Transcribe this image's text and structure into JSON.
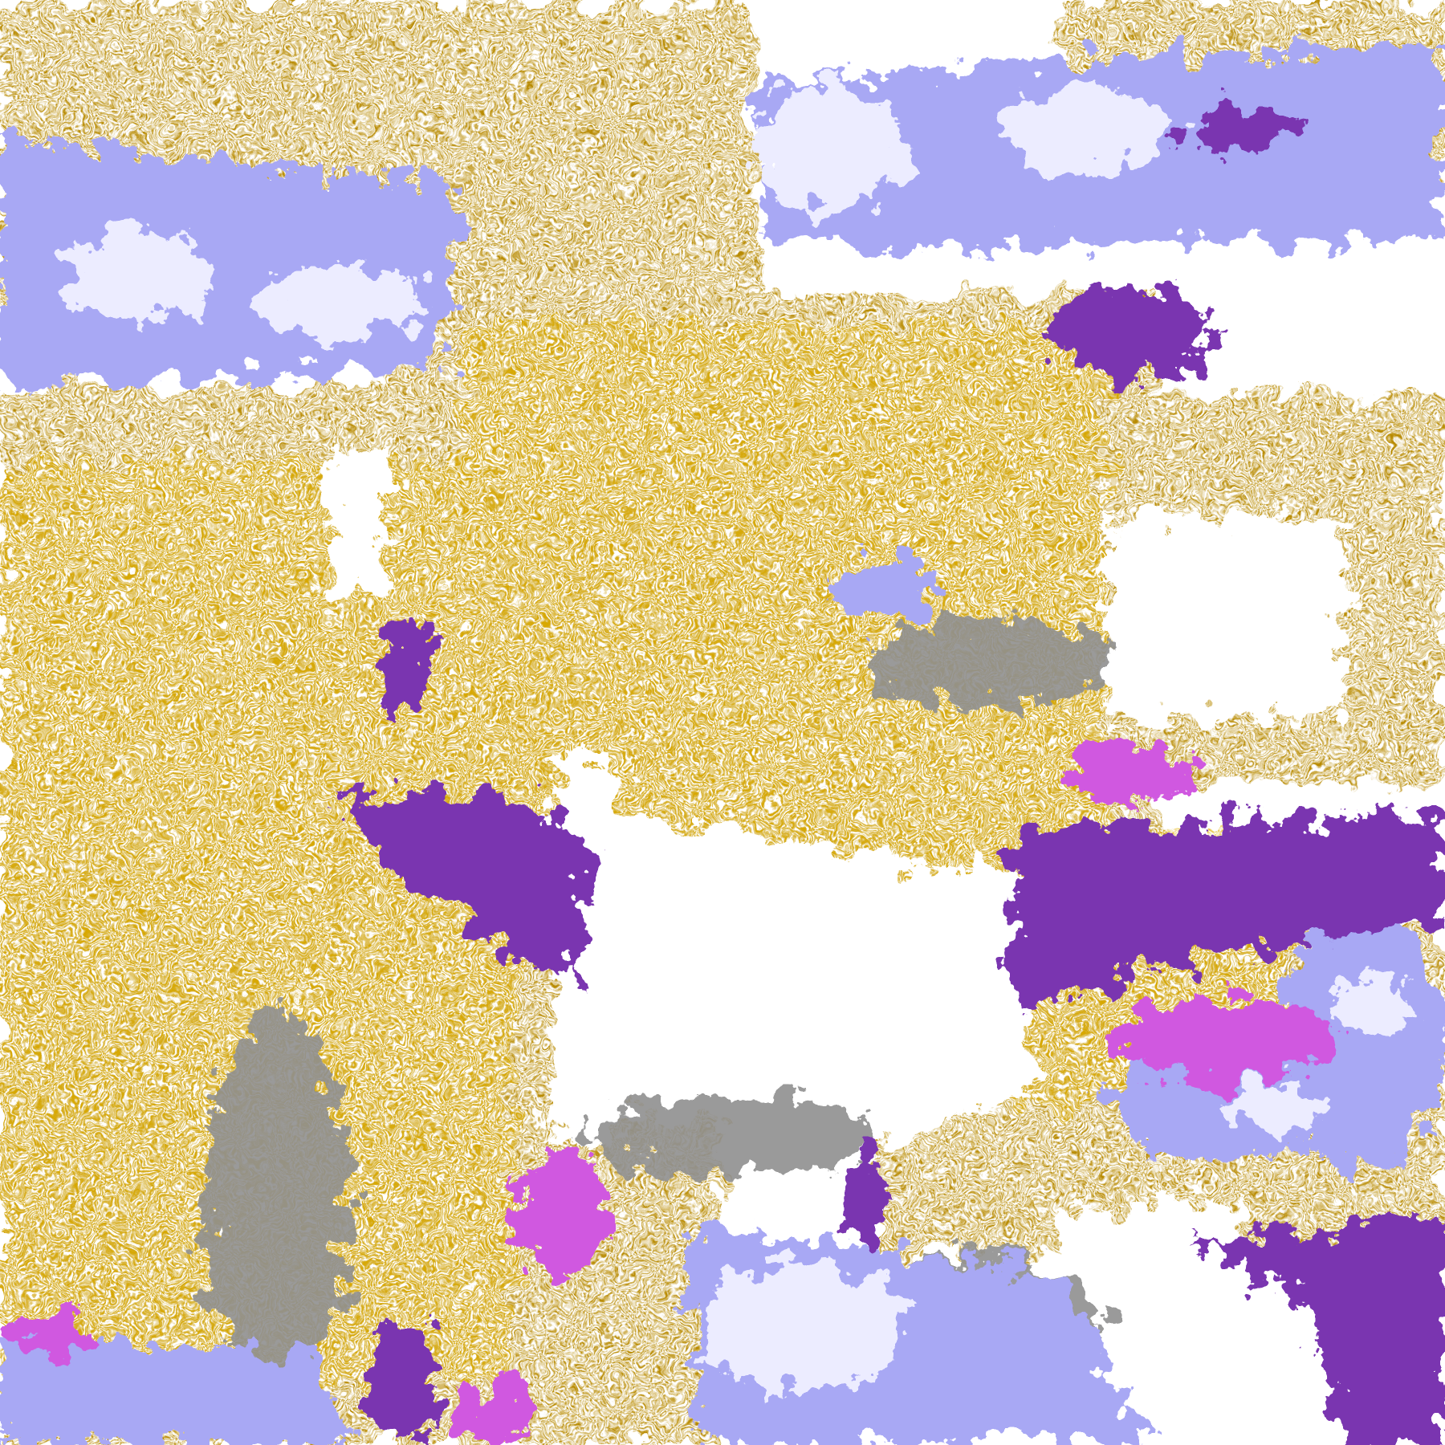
{
  "image": {
    "kind": "classified satellite imagery",
    "colors": {
      "gold_dark": "#b88a00",
      "gold_light": "#e0b000",
      "purple": "#7a35b0",
      "magenta": "#d058e0",
      "lavender": "#a8a8f4",
      "pale_lavender": "#ececff",
      "gray": "#909090",
      "background": "#ffffff"
    }
  }
}
